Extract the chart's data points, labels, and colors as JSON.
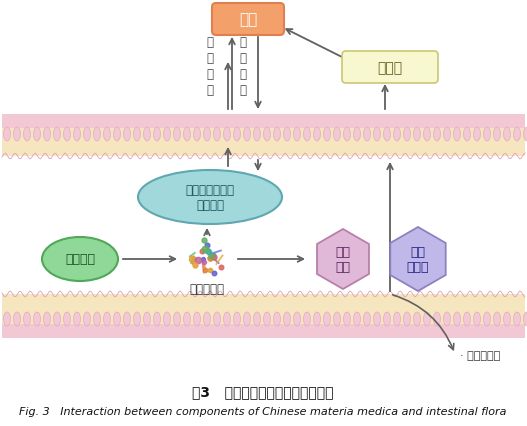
{
  "title_cn": "图3   中药成分与肠道菌群相互作用",
  "title_en": "Fig. 3   Interaction between components of Chinese materia medica and intestinal flora",
  "bg_color": "#ffffff",
  "intestinal_band_color": "#f5e6c0",
  "villi_pink": "#f2c8d5",
  "villi_outline": "#e0a0b8",
  "brain_box_fc": "#f4a06a",
  "brain_box_ec": "#e08050",
  "brain_text": "大脑",
  "body_circ_fc": "#f8f8d0",
  "body_circ_ec": "#c8c870",
  "body_circ_text": "体循环",
  "micro_ellipse_fc": "#a0d8dc",
  "micro_ellipse_ec": "#60a8b0",
  "micro_text_line1": "肠道菌群组成、",
  "micro_text_line2": "代谢改变",
  "tcm_fc": "#90d898",
  "tcm_ec": "#50a858",
  "tcm_text": "中药成分",
  "gut_micro_label": "肠道微生物",
  "meta_hex_fc": "#e0b8d8",
  "meta_hex_ec": "#b880a8",
  "meta_text_line1": "代谢",
  "meta_text_line2": "产物",
  "parent_hex_fc": "#c0b8e8",
  "parent_hex_ec": "#9080c0",
  "parent_text_line1": "母体",
  "parent_text_line2": "化合物",
  "nerve_intestine": "肠道神经",
  "nerve_efferent": "传出神经",
  "urine_feces": "尿液、粪便",
  "arrow_color": "#606060",
  "fig_label": "图 3"
}
